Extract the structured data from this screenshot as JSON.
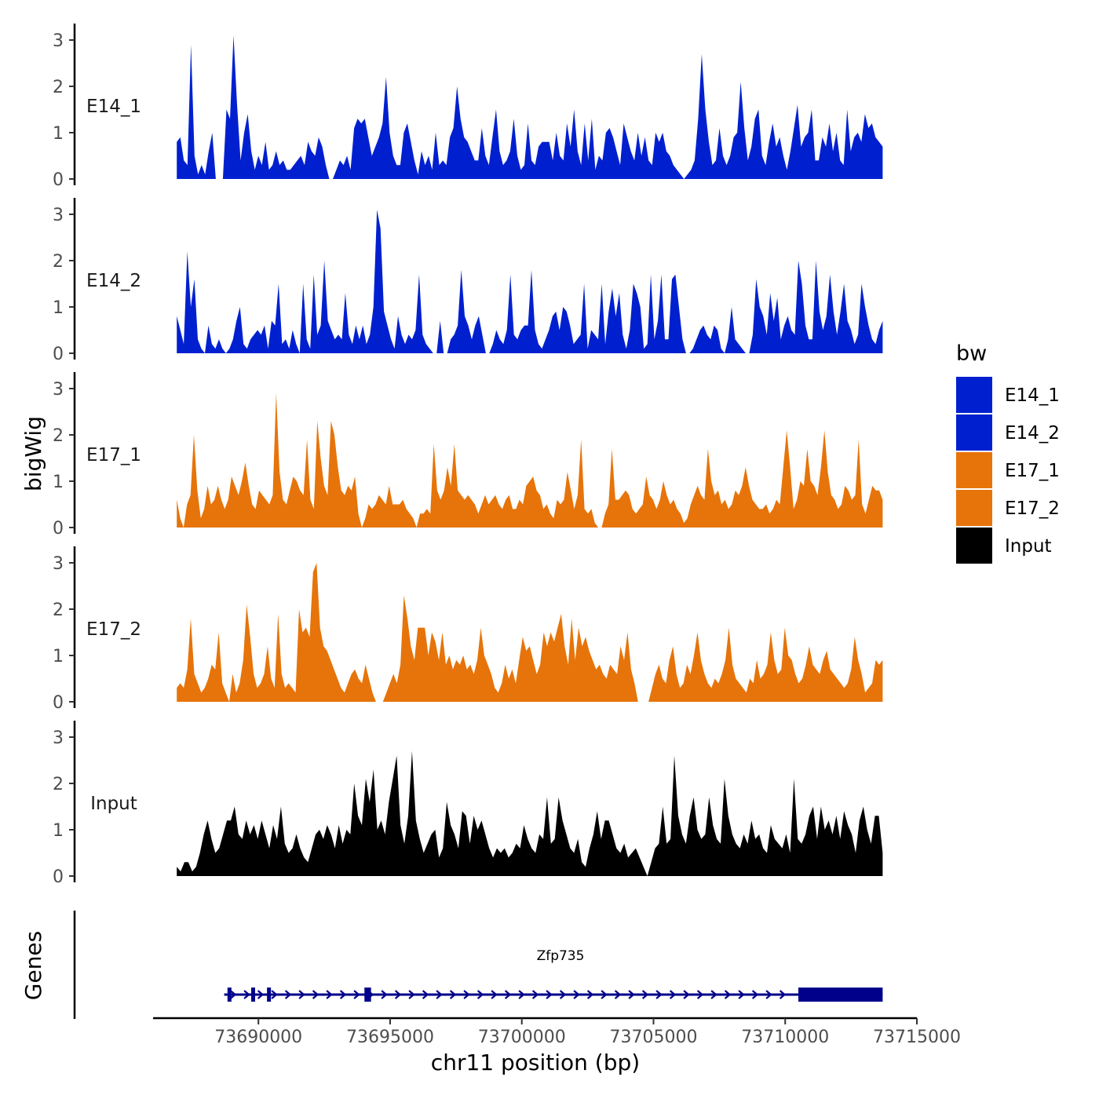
{
  "colors": {
    "E14": "#0020d0",
    "E17": "#e6740a",
    "Input": "#000000",
    "gene": "#00008b",
    "axis": "#000000"
  },
  "chart_data": {
    "type": "area",
    "title": "",
    "xlabel": "chr11 position (bp)",
    "ylabel": "bigWig",
    "gene_track_label": "Genes",
    "xlim": [
      73686000,
      73715000
    ],
    "ylim": [
      0,
      3.2
    ],
    "yticks": [
      0,
      1,
      2,
      3
    ],
    "xticks": [
      73690000,
      73695000,
      73700000,
      73705000,
      73710000,
      73715000
    ],
    "legend": {
      "title": "bw",
      "position": "right",
      "entries": [
        {
          "label": "E14_1",
          "color": "#0020d0"
        },
        {
          "label": "E14_2",
          "color": "#0020d0"
        },
        {
          "label": "E17_1",
          "color": "#e6740a"
        },
        {
          "label": "E17_2",
          "color": "#e6740a"
        },
        {
          "label": "Input",
          "color": "#000000"
        }
      ]
    },
    "series": [
      {
        "name": "E14_1",
        "color": "#0020d0",
        "x_start": 73686900,
        "x_end": 73713700,
        "values": [
          0.8,
          0.9,
          0.4,
          0.3,
          2.9,
          0.5,
          0.1,
          0.3,
          0.1,
          0.6,
          1.0,
          0,
          0,
          0,
          1.5,
          1.3,
          3.1,
          1.6,
          0.4,
          1.0,
          1.4,
          0.6,
          0.2,
          0.5,
          0.3,
          0.8,
          0.2,
          0.3,
          0.6,
          0.3,
          0.4,
          0.2,
          0.2,
          0.3,
          0.4,
          0.5,
          0.3,
          0.8,
          0.6,
          0.5,
          0.9,
          0.7,
          0.3,
          0,
          0,
          0.2,
          0.4,
          0.3,
          0.5,
          0.2,
          1.1,
          1.3,
          1.2,
          1.3,
          0.9,
          0.5,
          0.7,
          0.9,
          1.2,
          2.2,
          1.0,
          0.5,
          0.3,
          0.3,
          1.0,
          1.2,
          0.8,
          0.4,
          0.1,
          0.6,
          0.3,
          0.5,
          0.2,
          1.0,
          0.3,
          0.4,
          0.3,
          0.9,
          1.1,
          2.0,
          1.3,
          0.9,
          0.8,
          0.6,
          0.4,
          0.4,
          1.1,
          0.5,
          0.3,
          0.9,
          1.5,
          0.6,
          0.3,
          0.4,
          0.6,
          1.3,
          0.5,
          0.2,
          0.3,
          1.2,
          0.4,
          0.3,
          0.7,
          0.8,
          0.8,
          0.8,
          0.4,
          1.0,
          0.5,
          0.4,
          1.2,
          0.7,
          1.5,
          0.6,
          0.3,
          1.2,
          0.4,
          1.3,
          0.2,
          0.5,
          0.4,
          1.0,
          1.1,
          0.9,
          0.6,
          0.3,
          1.2,
          0.9,
          0.6,
          0.4,
          1.0,
          0.5,
          0.9,
          0.4,
          0.3,
          1.0,
          0.8,
          1.0,
          0.6,
          0.5,
          0.3,
          0.2,
          0.1,
          0,
          0.1,
          0.2,
          0.4,
          1.3,
          2.7,
          1.5,
          0.8,
          0.3,
          0.4,
          1.1,
          0.5,
          0.3,
          0.5,
          0.9,
          1.0,
          2.1,
          1.1,
          0.4,
          0.7,
          1.3,
          1.5,
          0.5,
          0.3,
          0.8,
          1.2,
          0.7,
          0.9,
          0.5,
          0.2,
          0.6,
          1.1,
          1.6,
          0.7,
          0.9,
          1.0,
          1.5,
          0.4,
          0.4,
          0.9,
          0.7,
          1.2,
          0.6,
          1.0,
          0.4,
          0.3,
          1.5,
          0.6,
          0.9,
          1.0,
          0.8,
          1.4,
          1.1,
          1.2,
          0.9,
          0.8,
          0.7
        ]
      },
      {
        "name": "E14_2",
        "color": "#0020d0",
        "x_start": 73686900,
        "x_end": 73713700,
        "values": [
          0.8,
          0.5,
          0.2,
          2.2,
          1.0,
          1.6,
          0.3,
          0.1,
          0,
          0.6,
          0.2,
          0.1,
          0.3,
          0.1,
          0,
          0.1,
          0.3,
          0.7,
          1.0,
          0.2,
          0.1,
          0.3,
          0.4,
          0.5,
          0.4,
          0.6,
          0.1,
          0.7,
          0.6,
          1.5,
          0.2,
          0.3,
          0.1,
          0.5,
          0.2,
          0,
          1.5,
          0.3,
          0.1,
          1.7,
          0.4,
          0.6,
          2.0,
          0.7,
          0.5,
          0.3,
          0.4,
          0.3,
          1.3,
          0.4,
          0.2,
          0.6,
          0.3,
          0.6,
          0.2,
          0.4,
          1.0,
          3.1,
          2.7,
          0.9,
          0.6,
          0.3,
          0.1,
          0.8,
          0.4,
          0.2,
          0.4,
          0.3,
          0.5,
          1.7,
          0.4,
          0.2,
          0.1,
          0,
          0,
          0.7,
          0,
          0,
          0.3,
          0.4,
          0.6,
          1.8,
          0.8,
          0.6,
          0.3,
          0.6,
          0.8,
          0.4,
          0,
          0,
          0.2,
          0.5,
          0.3,
          0.2,
          0.5,
          1.7,
          0.4,
          0.3,
          0.5,
          0.6,
          0.6,
          1.8,
          0.5,
          0.2,
          0.1,
          0.3,
          0.5,
          0.8,
          0.9,
          0.5,
          1.0,
          0.9,
          0.6,
          0.2,
          0.3,
          0.4,
          1.5,
          0.1,
          0.5,
          0.4,
          0.3,
          1.5,
          0.2,
          0.9,
          1.4,
          0.8,
          1.3,
          0.4,
          0.1,
          0.5,
          1.5,
          1.3,
          1.0,
          0.1,
          0.2,
          1.7,
          0.3,
          0.7,
          1.7,
          0.3,
          0.3,
          1.6,
          1.7,
          1.0,
          0.3,
          0,
          0,
          0.1,
          0.3,
          0.5,
          0.6,
          0.4,
          0.3,
          0.6,
          0.5,
          0.1,
          0,
          0.3,
          1.0,
          0.3,
          0.2,
          0.1,
          0,
          0,
          0.4,
          1.6,
          1.0,
          0.8,
          0.4,
          1.3,
          0.7,
          1.2,
          0.3,
          0.6,
          0.8,
          0.5,
          0.4,
          2.0,
          1.5,
          0.6,
          0.3,
          0.3,
          2.0,
          0.9,
          0.5,
          0.8,
          1.7,
          0.9,
          0.4,
          0.9,
          1.5,
          0.7,
          0.5,
          0.2,
          0.4,
          1.5,
          1.0,
          0.6,
          0.3,
          0.2,
          0.5,
          0.7
        ]
      },
      {
        "name": "E17_1",
        "color": "#e6740a",
        "x_start": 73686900,
        "x_end": 73713700,
        "values": [
          0.6,
          0.2,
          0,
          0.5,
          0.7,
          2.0,
          0.8,
          0.2,
          0.4,
          0.9,
          0.5,
          0.6,
          0.9,
          0.6,
          0.4,
          0.6,
          1.1,
          0.9,
          0.7,
          1.0,
          1.4,
          0.9,
          0.5,
          0.4,
          0.8,
          0.7,
          0.6,
          0.5,
          0.7,
          2.9,
          1.2,
          0.6,
          0.5,
          0.8,
          1.1,
          1.0,
          0.8,
          0.7,
          1.9,
          0.6,
          0.4,
          2.3,
          1.5,
          0.9,
          0.7,
          2.3,
          2.0,
          1.3,
          0.8,
          0.7,
          0.9,
          0.8,
          1.1,
          0.3,
          0,
          0.2,
          0.5,
          0.4,
          0.5,
          0.7,
          0.6,
          0.5,
          0.9,
          0.5,
          0.5,
          0.5,
          0.6,
          0.4,
          0.3,
          0.2,
          0,
          0.3,
          0.3,
          0.4,
          0.3,
          1.8,
          0.8,
          0.6,
          0.8,
          1.3,
          0.9,
          1.8,
          0.8,
          0.7,
          0.6,
          0.7,
          0.6,
          0.5,
          0.3,
          0.5,
          0.7,
          0.5,
          0.6,
          0.7,
          0.5,
          0.4,
          0.6,
          0.7,
          0.4,
          0.4,
          0.6,
          0.5,
          0.9,
          1.0,
          1.1,
          0.8,
          0.7,
          0.4,
          0.5,
          0.3,
          0.2,
          0.6,
          0.5,
          0.6,
          1.2,
          0.8,
          0.4,
          0.7,
          1.9,
          0.4,
          0.3,
          0.4,
          0.1,
          0,
          0,
          0.3,
          0.5,
          1.7,
          0.6,
          0.6,
          0.7,
          0.8,
          0.7,
          0.4,
          0.3,
          0.4,
          0.5,
          1.1,
          0.7,
          0.6,
          0.4,
          0.6,
          1.0,
          0.7,
          0.5,
          0.6,
          0.4,
          0.3,
          0.1,
          0.2,
          0.5,
          0.7,
          0.9,
          0.7,
          0.6,
          1.7,
          1.0,
          0.7,
          0.8,
          0.5,
          0.6,
          0.4,
          0.5,
          0.8,
          0.7,
          0.9,
          1.3,
          0.9,
          0.6,
          0.5,
          0.4,
          0.4,
          0.5,
          0.3,
          0.4,
          0.6,
          0.5,
          1.3,
          2.1,
          1.3,
          0.4,
          0.6,
          1.0,
          0.9,
          1.7,
          1.0,
          0.9,
          0.7,
          1.3,
          2.1,
          1.2,
          0.7,
          0.6,
          0.4,
          0.5,
          0.9,
          0.8,
          0.6,
          0.7,
          1.9,
          0.5,
          0.3,
          0.6,
          0.9,
          0.8,
          0.8,
          0.6
        ]
      },
      {
        "name": "E17_2",
        "color": "#e6740a",
        "x_start": 73686900,
        "x_end": 73713700,
        "values": [
          0.3,
          0.4,
          0.3,
          0.7,
          1.8,
          0.6,
          0.4,
          0.2,
          0.3,
          0.5,
          0.8,
          0.7,
          1.5,
          0.4,
          0.2,
          0,
          0.6,
          0.2,
          0.4,
          0.9,
          2.1,
          1.4,
          0.6,
          0.3,
          0.4,
          0.6,
          1.2,
          0.5,
          0.3,
          1.9,
          0.6,
          0.3,
          0.4,
          0.3,
          0.2,
          2.0,
          1.5,
          1.6,
          1.4,
          2.8,
          3.0,
          1.6,
          1.2,
          1.1,
          0.9,
          0.7,
          0.5,
          0.3,
          0.2,
          0.4,
          0.6,
          0.7,
          0.5,
          0.4,
          0.8,
          0.5,
          0.2,
          0,
          0,
          0,
          0.2,
          0.4,
          0.6,
          0.4,
          0.8,
          2.3,
          1.8,
          1.2,
          0.9,
          1.6,
          1.6,
          1.6,
          1.0,
          1.5,
          1.3,
          0.9,
          1.5,
          0.8,
          1.0,
          0.7,
          0.9,
          0.8,
          1.0,
          0.7,
          0.8,
          0.6,
          0.9,
          1.6,
          1.0,
          0.8,
          0.6,
          0.3,
          0.2,
          0.4,
          0.8,
          0.5,
          0.7,
          0.4,
          0.9,
          1.4,
          1.1,
          1.2,
          0.9,
          0.6,
          0.8,
          1.5,
          1.2,
          1.5,
          1.3,
          1.6,
          1.9,
          1.2,
          0.8,
          1.8,
          0.9,
          1.6,
          1.2,
          1.4,
          1.1,
          0.9,
          0.7,
          0.8,
          0.6,
          0.5,
          0.8,
          0.7,
          0.6,
          1.2,
          0.9,
          1.5,
          0.7,
          0.4,
          0,
          0,
          0,
          0,
          0.3,
          0.6,
          0.8,
          0.5,
          0.4,
          0.9,
          1.2,
          0.6,
          0.3,
          0.4,
          0.8,
          0.6,
          1.0,
          1.5,
          0.9,
          0.6,
          0.4,
          0.3,
          0.5,
          0.4,
          0.6,
          0.9,
          1.6,
          0.8,
          0.5,
          0.4,
          0.3,
          0.2,
          0.5,
          0.4,
          0.9,
          0.5,
          0.6,
          0.8,
          1.5,
          0.9,
          0.6,
          0.7,
          1.6,
          1.0,
          0.9,
          0.6,
          0.4,
          0.5,
          0.8,
          1.2,
          0.8,
          0.7,
          0.6,
          0.9,
          1.1,
          0.7,
          0.6,
          0.5,
          0.4,
          0.3,
          0.4,
          0.7,
          1.4,
          0.9,
          0.6,
          0.2,
          0.3,
          0.4,
          0.9,
          0.8,
          0.9
        ]
      },
      {
        "name": "Input",
        "color": "#000000",
        "x_start": 73686900,
        "x_end": 73713700,
        "values": [
          0.2,
          0.1,
          0.3,
          0.3,
          0.1,
          0.2,
          0.5,
          0.9,
          1.2,
          0.8,
          0.5,
          0.6,
          0.9,
          1.2,
          1.2,
          1.5,
          0.9,
          0.8,
          1.2,
          0.9,
          1.1,
          0.8,
          1.2,
          0.9,
          0.6,
          1.1,
          0.8,
          1.5,
          0.7,
          0.5,
          0.6,
          0.9,
          0.6,
          0.4,
          0.3,
          0.6,
          0.9,
          1.0,
          0.8,
          1.1,
          0.9,
          0.6,
          1.1,
          0.7,
          1.0,
          0.9,
          2.0,
          1.3,
          1.1,
          2.1,
          1.6,
          2.3,
          1.0,
          1.2,
          0.9,
          1.6,
          2.1,
          2.6,
          1.1,
          0.7,
          1.3,
          2.7,
          1.2,
          0.8,
          0.5,
          0.7,
          0.9,
          1.0,
          0.4,
          0.6,
          1.6,
          1.1,
          0.9,
          0.6,
          1.4,
          1.3,
          0.7,
          1.3,
          1.0,
          1.2,
          0.9,
          0.6,
          0.4,
          0.6,
          0.5,
          0.6,
          0.4,
          0.5,
          0.7,
          0.6,
          1.1,
          0.8,
          0.6,
          0.5,
          0.9,
          0.8,
          1.7,
          0.7,
          0.8,
          1.7,
          1.2,
          0.9,
          0.6,
          0.5,
          0.8,
          0.3,
          0.2,
          0.6,
          0.9,
          1.4,
          0.8,
          1.2,
          1.2,
          0.9,
          0.6,
          0.5,
          0.7,
          0.4,
          0.5,
          0.6,
          0.4,
          0.2,
          0,
          0.3,
          0.6,
          0.7,
          1.5,
          0.7,
          0.8,
          2.6,
          1.3,
          0.9,
          0.7,
          1.3,
          1.7,
          1.0,
          0.8,
          0.9,
          1.7,
          1.1,
          0.8,
          0.7,
          2.1,
          1.3,
          0.9,
          0.7,
          0.6,
          0.9,
          0.7,
          1.2,
          0.8,
          0.9,
          0.6,
          0.5,
          1.1,
          0.8,
          0.7,
          0.6,
          0.9,
          0.5,
          2.1,
          0.8,
          0.7,
          0.9,
          1.3,
          1.5,
          0.8,
          1.5,
          1.0,
          1.2,
          0.9,
          1.3,
          0.8,
          1.4,
          1.1,
          0.9,
          0.5,
          1.2,
          1.5,
          1.0,
          0.7,
          1.3,
          1.3,
          0.5
        ]
      }
    ],
    "gene": {
      "name": "Zfp735",
      "strand": "+",
      "start": 73688700,
      "end": 73713700,
      "thick_start": 73710500,
      "thick_end": 73713700,
      "exons": [
        73688900,
        73689800,
        73690400,
        73694100,
        73694200
      ]
    }
  }
}
